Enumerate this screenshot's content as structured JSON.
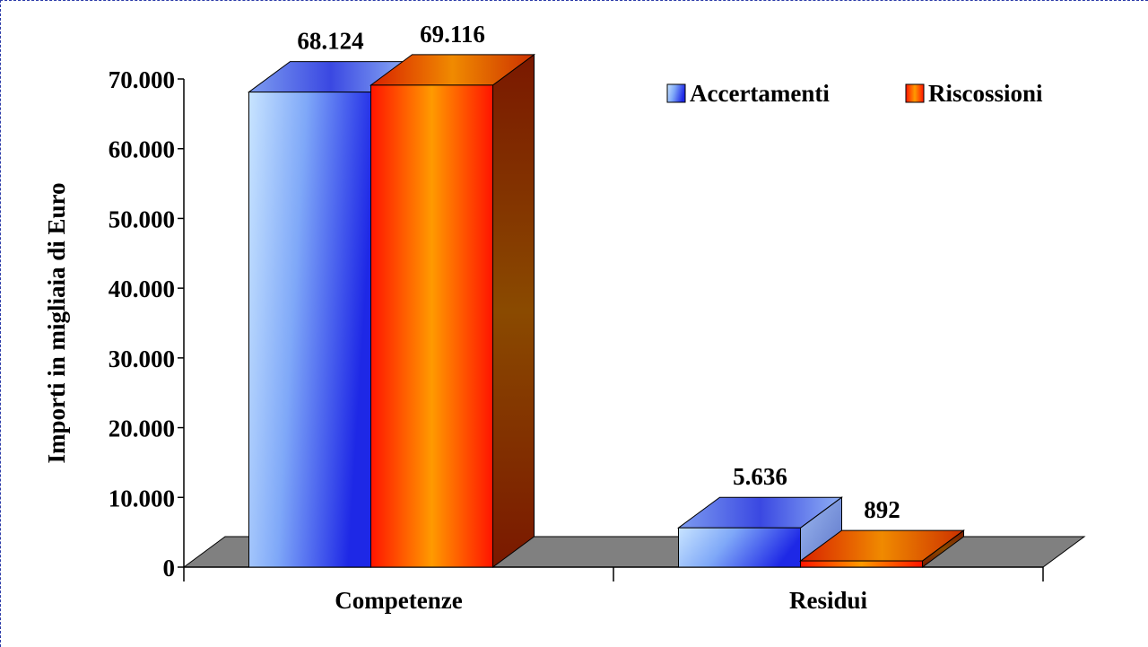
{
  "chart_data": {
    "type": "bar",
    "categories": [
      "Competenze",
      "Residui"
    ],
    "series": [
      {
        "name": "Accertamenti",
        "values": [
          68124,
          5636
        ],
        "labels": [
          "68.124",
          "5.636"
        ]
      },
      {
        "name": "Riscossioni",
        "values": [
          69116,
          892
        ],
        "labels": [
          "69.116",
          "892"
        ]
      }
    ],
    "ylabel": "Importi in migliaia di Euro",
    "ylim": [
      0,
      70000
    ],
    "yticks": [
      0,
      10000,
      20000,
      30000,
      40000,
      50000,
      60000,
      70000
    ],
    "ytick_labels": [
      "0",
      "10.000",
      "20.000",
      "30.000",
      "40.000",
      "50.000",
      "60.000",
      "70.000"
    ],
    "legend_position": "top-right",
    "grid": false,
    "three_d": true
  },
  "colors": {
    "accertamenti_light": "#c8e4ff",
    "accertamenti_dark": "#1e28e6",
    "riscossioni_light": "#ff9a00",
    "riscossioni_dark": "#ff1400",
    "floor": "#808080",
    "frame": "#2a3aa8"
  }
}
